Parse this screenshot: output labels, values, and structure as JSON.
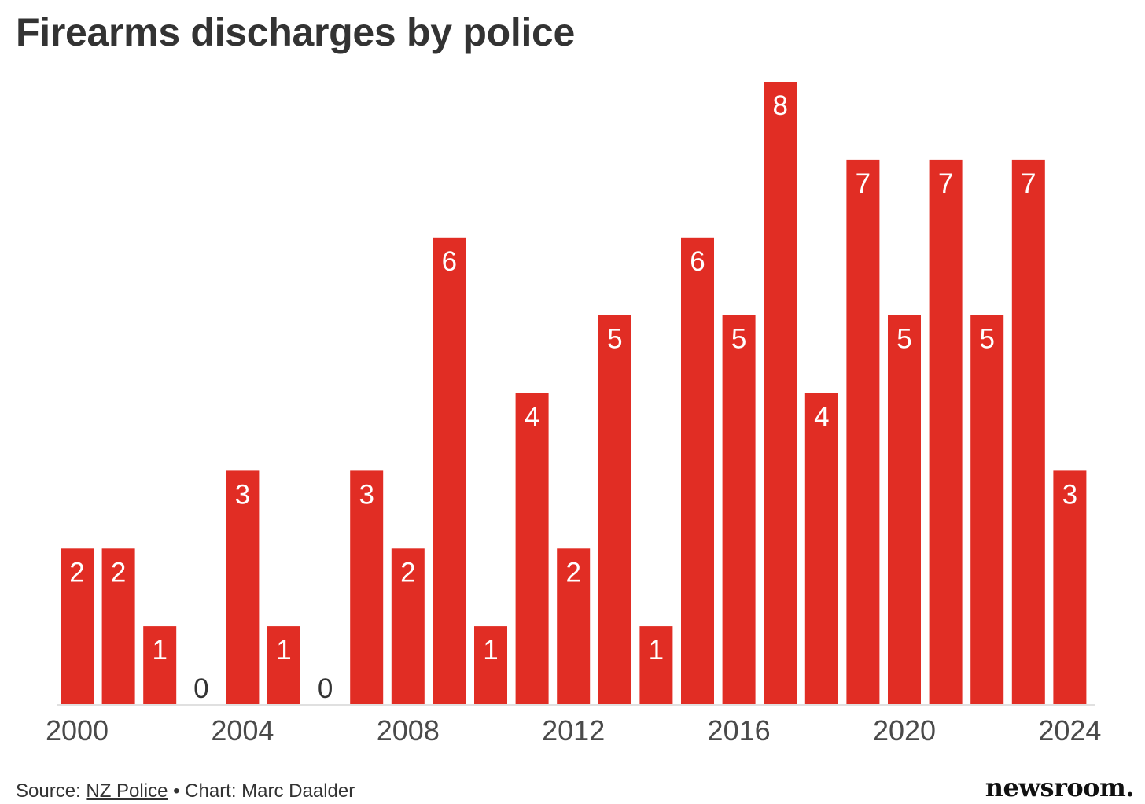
{
  "chart_data": {
    "type": "bar",
    "title": "Firearms discharges by police",
    "xlabel": "",
    "ylabel": "",
    "categories": [
      "2000",
      "2001",
      "2002",
      "2003",
      "2004",
      "2005",
      "2006",
      "2007",
      "2008",
      "2009",
      "2010",
      "2011",
      "2012",
      "2013",
      "2014",
      "2015",
      "2016",
      "2017",
      "2018",
      "2019",
      "2020",
      "2021",
      "2022",
      "2023",
      "2024"
    ],
    "values": [
      2,
      2,
      1,
      0,
      3,
      1,
      0,
      3,
      2,
      6,
      1,
      4,
      2,
      5,
      1,
      6,
      5,
      8,
      4,
      7,
      5,
      7,
      5,
      7,
      3
    ],
    "x_ticks": [
      "2000",
      "2004",
      "2008",
      "2012",
      "2016",
      "2020",
      "2024"
    ],
    "ylim": [
      0,
      8
    ],
    "grid": false,
    "legend": "none",
    "colors": {
      "bar": "#e12d24",
      "label_inside": "#ffffff",
      "label_zero": "#333333"
    }
  },
  "footer": {
    "source_prefix": "Source: ",
    "source_link": "NZ Police",
    "credit": " • Chart: Marc Daalder"
  },
  "brand": "newsroom."
}
